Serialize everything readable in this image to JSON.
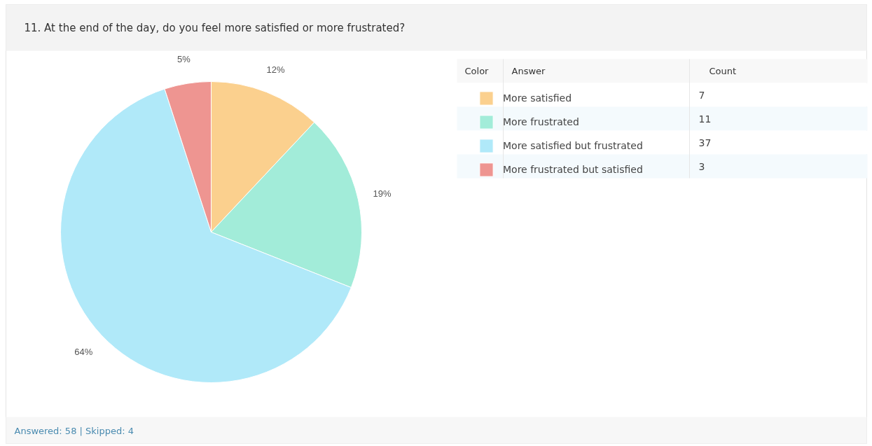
{
  "chart_data": {
    "type": "pie",
    "title": "11. At the end of the day, do you feel more satisfied or more frustrated?",
    "categories": [
      "More satisfied",
      "More frustrated",
      "More satisfied but frustrated",
      "More frustrated but satisfied"
    ],
    "values": [
      12,
      19,
      64,
      5
    ],
    "colors": [
      "#fbd08e",
      "#a2ecd9",
      "#b0e9f9",
      "#ee9591"
    ],
    "value_labels": [
      "12%",
      "19%",
      "64%",
      "5%"
    ],
    "legend": "right",
    "annotations": [
      "Color",
      "Answer",
      "Count",
      "7",
      "11",
      "37",
      "3",
      "Answered: 58 | Skipped: 4"
    ]
  }
}
